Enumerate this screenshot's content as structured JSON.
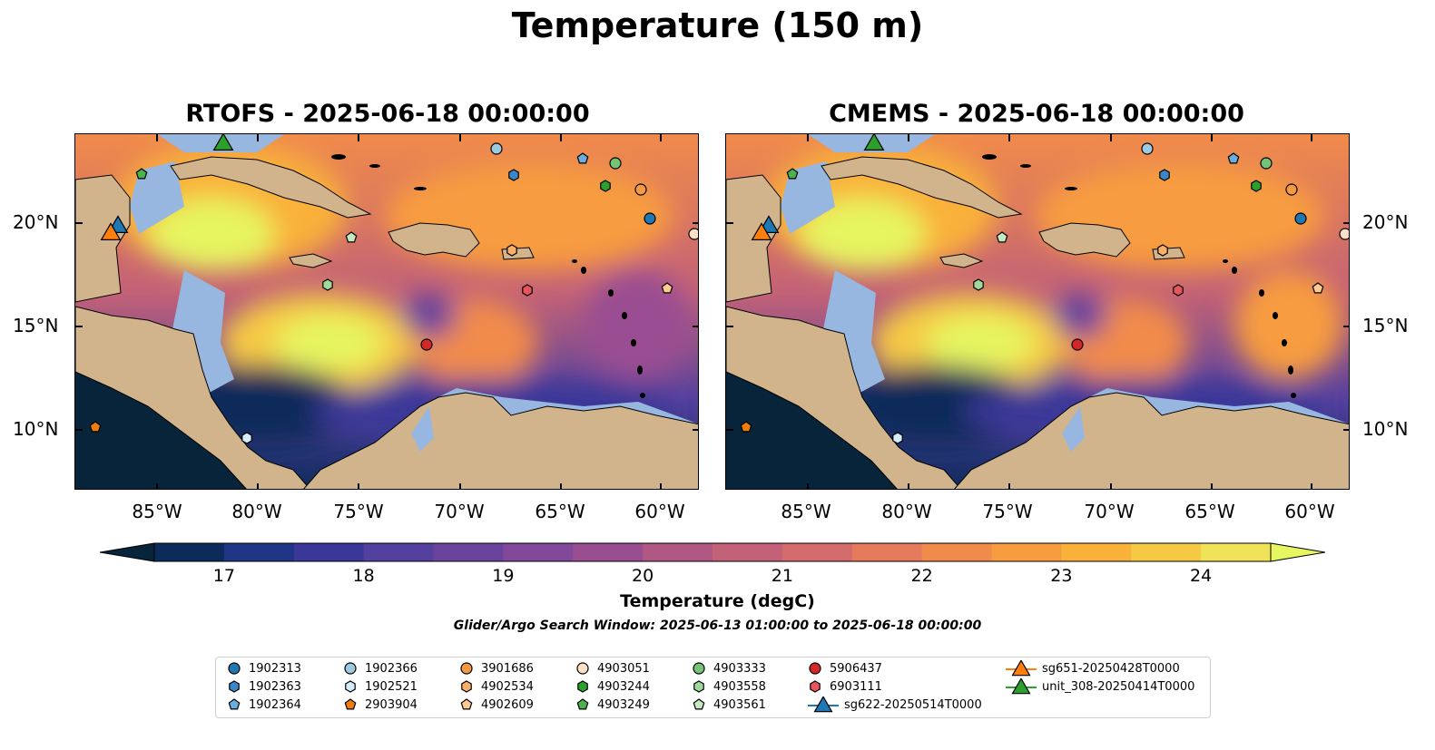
{
  "title": "Temperature (150 m)",
  "panels": [
    {
      "title": "RTOFS - 2025-06-18 00:00:00"
    },
    {
      "title": "CMEMS - 2025-06-18 00:00:00"
    }
  ],
  "map": {
    "lat_labels": [
      "20°N",
      "15°N",
      "10°N"
    ],
    "lon_labels": [
      "85°W",
      "80°W",
      "75°W",
      "70°W",
      "65°W",
      "60°W"
    ],
    "colors": {
      "land": "#d2b48c",
      "shallow": "#97b6e0",
      "deep": "#07243a"
    }
  },
  "colorbar": {
    "label": "Temperature (degC)",
    "ticks": [
      "17",
      "18",
      "19",
      "20",
      "21",
      "22",
      "23",
      "24"
    ],
    "range": [
      16.5,
      24.5
    ],
    "colors": [
      "#07243a",
      "#0b2b5a",
      "#1f3585",
      "#3a3798",
      "#54409e",
      "#6a449c",
      "#82489a",
      "#9a4e92",
      "#b05884",
      "#c26177",
      "#d46b6c",
      "#e57a5d",
      "#f18b4b",
      "#f79c3f",
      "#f9b13a",
      "#f6c944",
      "#f0e359",
      "#e6f560"
    ]
  },
  "search_window": "Glider/Argo Search Window: 2025-06-13 01:00:00 to 2025-06-18 00:00:00",
  "legend": {
    "items": [
      {
        "label": "1902313",
        "shape": "circle",
        "color": "#1f77b4"
      },
      {
        "label": "1902363",
        "shape": "hexagon",
        "color": "#3a86c8"
      },
      {
        "label": "1902364",
        "shape": "pentagon",
        "color": "#6aaee0"
      },
      {
        "label": "1902366",
        "shape": "circle",
        "color": "#9ecae1"
      },
      {
        "label": "1902521",
        "shape": "hexagon",
        "color": "#d6ecfa"
      },
      {
        "label": "2903904",
        "shape": "pentagon",
        "color": "#f07d0b"
      },
      {
        "label": "3901686",
        "shape": "circle",
        "color": "#f39a43"
      },
      {
        "label": "4902534",
        "shape": "hexagon",
        "color": "#fbb06a"
      },
      {
        "label": "4902609",
        "shape": "pentagon",
        "color": "#fdcb92"
      },
      {
        "label": "4903051",
        "shape": "circle",
        "color": "#fde0c5"
      },
      {
        "label": "4903244",
        "shape": "hexagon",
        "color": "#2ca02c"
      },
      {
        "label": "4903249",
        "shape": "pentagon",
        "color": "#4cb34c"
      },
      {
        "label": "4903333",
        "shape": "circle",
        "color": "#74c476"
      },
      {
        "label": "4903558",
        "shape": "hexagon",
        "color": "#a1d99b"
      },
      {
        "label": "4903561",
        "shape": "pentagon",
        "color": "#c7e9c0"
      },
      {
        "label": "5906437",
        "shape": "circle",
        "color": "#d62728"
      },
      {
        "label": "6903111",
        "shape": "hexagon",
        "color": "#e8555a"
      },
      {
        "label": "sg622-20250514T0000",
        "shape": "triangle",
        "color": "#1f77b4"
      },
      {
        "label": "sg651-20250428T0000",
        "shape": "triangle",
        "color": "#ff7f0e"
      },
      {
        "label": "unit_308-20250414T0000",
        "shape": "triangle",
        "color": "#2ca02c"
      }
    ]
  }
}
